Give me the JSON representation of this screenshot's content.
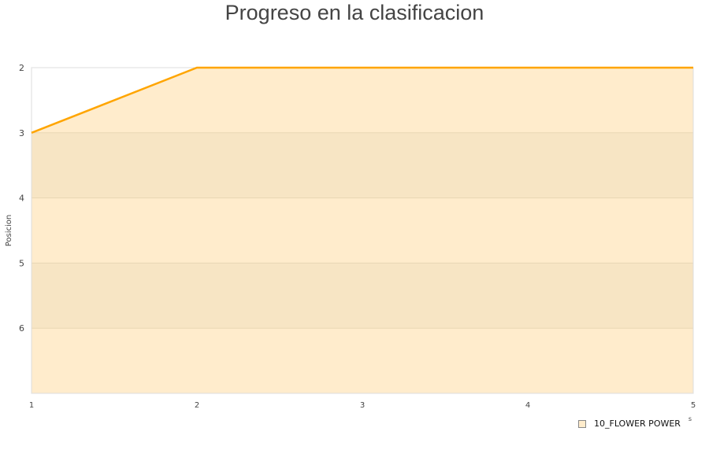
{
  "chart_data": {
    "type": "area",
    "title": "Progreso en la clasificacion",
    "ylabel": "Posicion",
    "xlabel": "s",
    "x": [
      1,
      2,
      3,
      4,
      5
    ],
    "series": [
      {
        "name": "10_FLOWER POWER",
        "values": [
          3,
          2,
          2,
          2,
          2
        ]
      }
    ],
    "xlim": [
      1,
      5
    ],
    "ylim": [
      2,
      7
    ],
    "y_inverted": true,
    "xticks": [
      1,
      2,
      3,
      4,
      5
    ],
    "yticks": [
      2,
      3,
      4,
      5,
      6
    ],
    "grid": "alternating horizontal bands",
    "legend": "bottom-right",
    "colors": {
      "line": "#ffa500",
      "fill": "#ffeccc",
      "band": "#f6e4c3",
      "axis": "#dddddd"
    }
  }
}
